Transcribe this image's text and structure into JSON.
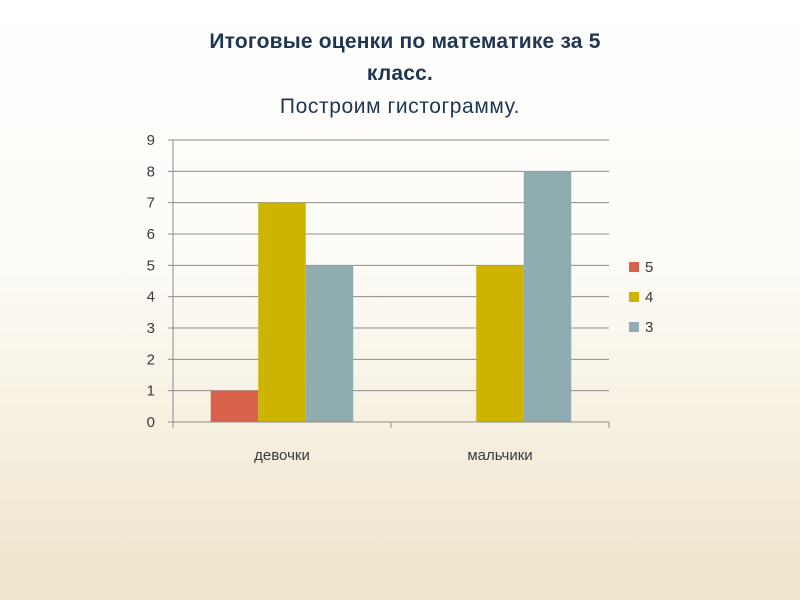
{
  "slide": {
    "title_line1": "Итоговые оценки по математике за 5",
    "title_line2": "класс.",
    "subtitle": "Построим гистограмму."
  },
  "chart_data": {
    "type": "bar",
    "categories": [
      "девочки",
      "мальчики"
    ],
    "series": [
      {
        "name": "5",
        "values": [
          1,
          0
        ],
        "color": "#d9634a"
      },
      {
        "name": "4",
        "values": [
          7,
          5
        ],
        "color": "#ccb400"
      },
      {
        "name": "3",
        "values": [
          5,
          8
        ],
        "color": "#8fadb0"
      }
    ],
    "ylim": [
      0,
      9
    ],
    "yticks": [
      "0",
      "1",
      "2",
      "3",
      "4",
      "5",
      "6",
      "7",
      "8",
      "9"
    ],
    "grid": true,
    "legend_position": "right",
    "xlabel": "",
    "ylabel": ""
  }
}
